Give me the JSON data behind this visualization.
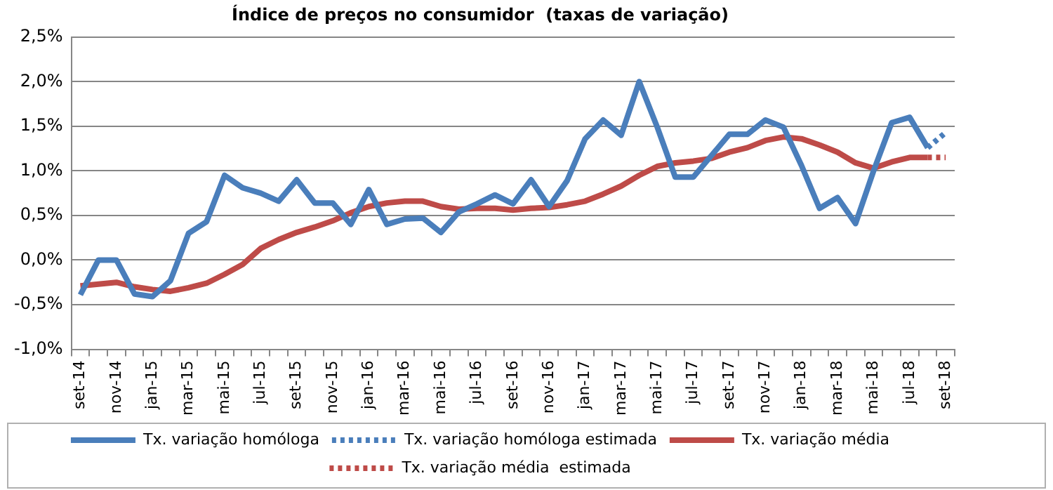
{
  "chart_data": {
    "type": "line",
    "title": "Índice de preços no consumidor  (taxas de variação)",
    "categories": [
      "set-14",
      null,
      "nov-14",
      null,
      "jan-15",
      null,
      "mar-15",
      null,
      "mai-15",
      null,
      "jul-15",
      null,
      "set-15",
      null,
      "nov-15",
      null,
      "jan-16",
      null,
      "mar-16",
      null,
      "mai-16",
      null,
      "jul-16",
      null,
      "set-16",
      null,
      "nov-16",
      null,
      "jan-17",
      null,
      "mar-17",
      null,
      "mai-17",
      null,
      "jul-17",
      null,
      "set-17",
      null,
      "nov-17",
      null,
      "jan-18",
      null,
      "mar-18",
      null,
      "mai-18",
      null,
      "jul-18",
      null,
      "set-18"
    ],
    "series": [
      {
        "name": "Tx. variação homóloga",
        "color": "#4a7ebb",
        "line_style": "solid",
        "values": [
          -0.39,
          0.0,
          0.0,
          -0.38,
          -0.41,
          -0.23,
          0.3,
          0.43,
          0.95,
          0.81,
          0.75,
          0.66,
          0.9,
          0.64,
          0.64,
          0.4,
          0.79,
          0.4,
          0.46,
          0.47,
          0.31,
          0.54,
          0.63,
          0.73,
          0.63,
          0.9,
          0.6,
          0.89,
          1.36,
          1.57,
          1.4,
          2.0,
          1.49,
          0.93,
          0.93,
          1.17,
          1.41,
          1.41,
          1.57,
          1.49,
          1.06,
          0.58,
          0.7,
          0.41,
          1.0,
          1.54,
          1.6,
          1.26,
          null
        ]
      },
      {
        "name": "Tx. variação homóloga estimada",
        "color": "#4a7ebb",
        "line_style": "dotted",
        "values": [
          null,
          null,
          null,
          null,
          null,
          null,
          null,
          null,
          null,
          null,
          null,
          null,
          null,
          null,
          null,
          null,
          null,
          null,
          null,
          null,
          null,
          null,
          null,
          null,
          null,
          null,
          null,
          null,
          null,
          null,
          null,
          null,
          null,
          null,
          null,
          null,
          null,
          null,
          null,
          null,
          null,
          null,
          null,
          null,
          null,
          null,
          null,
          1.26,
          1.43
        ]
      },
      {
        "name": "Tx. variação média",
        "color": "#be4b48",
        "line_style": "solid",
        "values": [
          -0.29,
          -0.27,
          -0.25,
          -0.3,
          -0.33,
          -0.35,
          -0.31,
          -0.26,
          -0.16,
          -0.05,
          0.13,
          0.23,
          0.31,
          0.37,
          0.44,
          0.53,
          0.6,
          0.64,
          0.66,
          0.66,
          0.6,
          0.57,
          0.58,
          0.58,
          0.56,
          0.58,
          0.59,
          0.62,
          0.66,
          0.74,
          0.83,
          0.95,
          1.05,
          1.09,
          1.11,
          1.14,
          1.21,
          1.26,
          1.34,
          1.38,
          1.36,
          1.29,
          1.21,
          1.09,
          1.03,
          1.1,
          1.15,
          1.15,
          null
        ]
      },
      {
        "name": "Tx. variação média  estimada",
        "color": "#be4b48",
        "line_style": "dotted",
        "values": [
          null,
          null,
          null,
          null,
          null,
          null,
          null,
          null,
          null,
          null,
          null,
          null,
          null,
          null,
          null,
          null,
          null,
          null,
          null,
          null,
          null,
          null,
          null,
          null,
          null,
          null,
          null,
          null,
          null,
          null,
          null,
          null,
          null,
          null,
          null,
          null,
          null,
          null,
          null,
          null,
          null,
          null,
          null,
          null,
          null,
          null,
          null,
          1.15,
          1.15
        ]
      }
    ],
    "ylim": [
      -1.0,
      2.5
    ],
    "yticks": [
      {
        "value": -1.0,
        "label": "-1,0%"
      },
      {
        "value": -0.5,
        "label": "-0,5%"
      },
      {
        "value": 0.0,
        "label": "0,0%"
      },
      {
        "value": 0.5,
        "label": "0,5%"
      },
      {
        "value": 1.0,
        "label": "1,0%"
      },
      {
        "value": 1.5,
        "label": "1,5%"
      },
      {
        "value": 2.0,
        "label": "2,0%"
      },
      {
        "value": 2.5,
        "label": "2,5%"
      }
    ],
    "grid": "y",
    "legend": "bottom",
    "marker": "none"
  }
}
